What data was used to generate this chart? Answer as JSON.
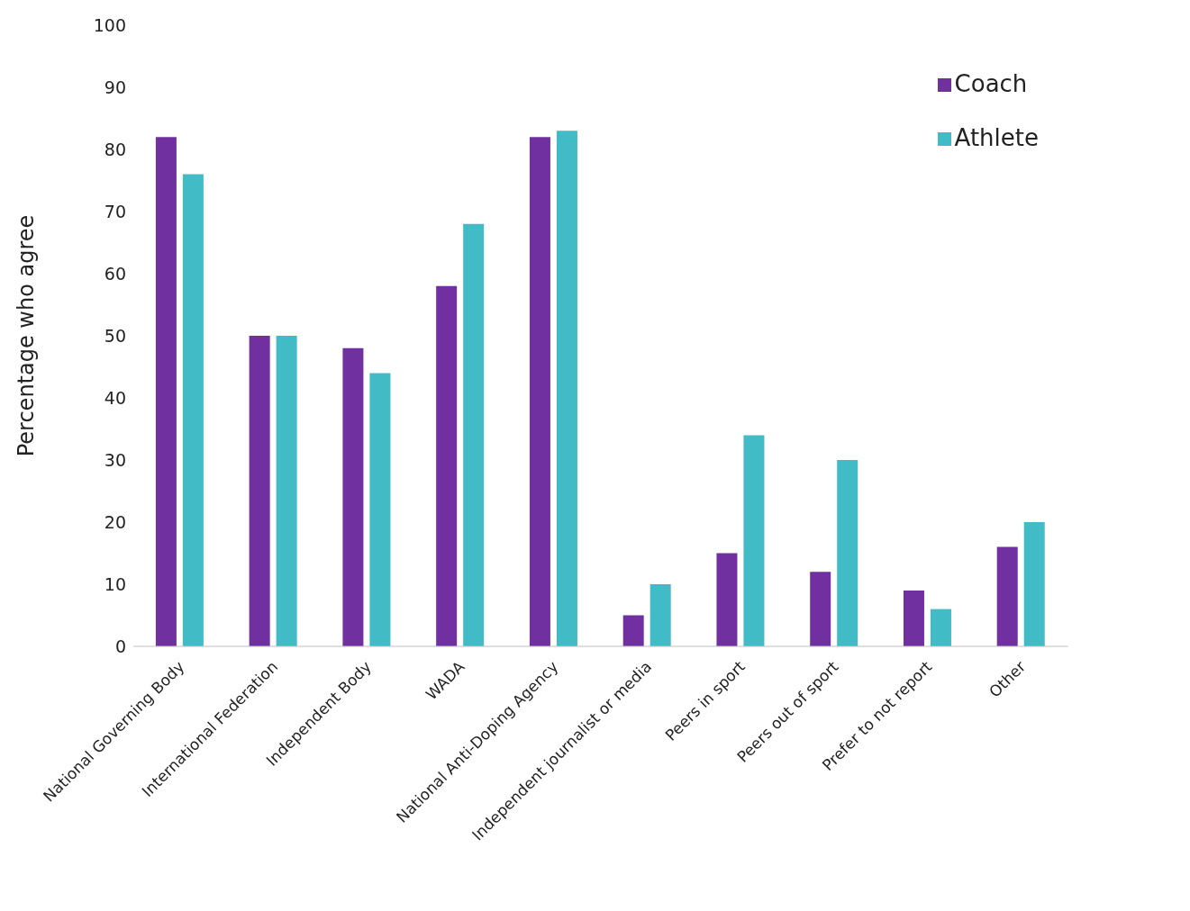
{
  "chart_data": {
    "type": "bar",
    "ylabel": "Percentage who agree",
    "categories": [
      "National Governing Body",
      "International Federation",
      "Independent Body",
      "WADA",
      "National Anti-Doping Agency",
      "Independent journalist or media",
      "Peers in sport",
      "Peers out of sport",
      "Prefer to not report",
      "Other"
    ],
    "series": [
      {
        "name": "Coach",
        "color": "#7030a0",
        "values": [
          82,
          50,
          48,
          58,
          82,
          5,
          15,
          12,
          9,
          16
        ]
      },
      {
        "name": "Athlete",
        "color": "#41bbc5",
        "values": [
          76,
          50,
          44,
          68,
          83,
          10,
          34,
          30,
          6,
          20
        ]
      }
    ],
    "ylim": [
      0,
      100
    ],
    "yticks": [
      0,
      10,
      20,
      30,
      40,
      50,
      60,
      70,
      80,
      90,
      100
    ],
    "grid": false,
    "legend": "top right"
  }
}
